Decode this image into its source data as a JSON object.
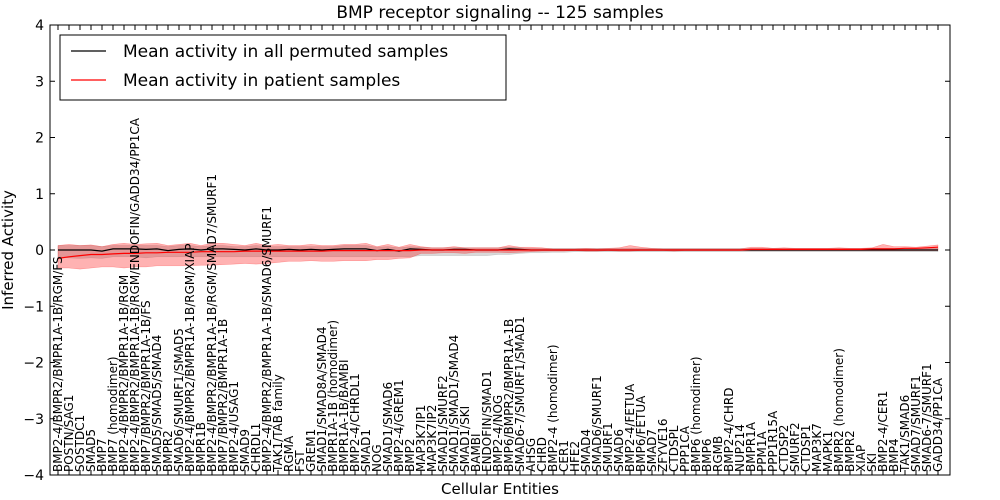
{
  "chart_data": {
    "type": "line",
    "title": "BMP receptor signaling -- 125 samples",
    "xlabel": "Cellular Entities",
    "ylabel": "Inferred Activity",
    "ylim": [
      -4,
      4
    ],
    "yticks": [
      -4,
      -3,
      -2,
      -1,
      0,
      1,
      2,
      3,
      4
    ],
    "ytick_labels": [
      "−4",
      "−3",
      "−2",
      "−1",
      "0",
      "1",
      "2",
      "3",
      "4"
    ],
    "grid": false,
    "legend_position": "top-left",
    "colors": {
      "permuted_line": "#000000",
      "patient_line": "#ff0000",
      "patient_band": "#ff0000",
      "permuted_band": "#808080"
    },
    "categories": [
      "BMP2-4/BMPR2/BMPR1A-1B/RGM/FS",
      "POSTN/SAG1",
      "SOSTDC1",
      "SMAD5",
      "BMP7",
      "BMP7 (homodimer)",
      "BMP2-4/BMPR2/BMPR1A-1B/RGM",
      "BMP2-4/BMPR2/BMPR1A-1B/RGM/ENDOFIN/GADD34/PP1CA",
      "BMP7/BMPR2/BMPR1A-1B/FS",
      "SMAD5/SMAD5/SMAD4",
      "BMPR2",
      "SMAD6/SMURF1/SMAD5",
      "BMP2-4/BMPR2/BMPR1A-1B/RGM/XIAP",
      "BMPR1B",
      "BMP2-4/BMPR2/BMPR1A-1B/RGM/SMAD7/SMURF1",
      "BMP7/BMPR2/BMPR1A-1B",
      "BMP2-4/USAG1",
      "SMAD9",
      "CHRDL1",
      "BMP2-4/BMPR2/BMPR1A-1B/SMAD6/SMURF1",
      "TAK1/TAB family",
      "RGMA",
      "FST",
      "GREM1",
      "SMAD1/SMAD8A/SMAD4",
      "BMPR1A-1B (homodimer)",
      "BMPR1A-1B/BAMBI",
      "BMP2-4/CHRDL1",
      "SMAD1",
      "NOG",
      "SMAD1/SMAD6",
      "BMP2-4/GREM1",
      "BMP2",
      "MAP3K7IP1",
      "MAP3K7IP2",
      "SMAD1/SMURF2",
      "SMAD1/SMAD1/SMAD4",
      "SMAD1/SKI",
      "BAMBI",
      "ENDOFIN/SMAD1",
      "BMP2-4/NOG",
      "BMP6/BMPR2/BMPR1A-1B",
      "SMAD6-7/SMURF1/SMAD1",
      "AHSG",
      "CHRD",
      "BMP2-4 (homodimer)",
      "CER1",
      "HFE2",
      "SMAD4",
      "SMAD6/SMURF1",
      "SMURF1",
      "SMAD6",
      "BMP2-4/FETUA",
      "BMP6/FETUA",
      "SMAD7",
      "ZFYVE16",
      "CTDSPL",
      "PPP1CA",
      "BMP6 (homodimer)",
      "BMP6",
      "RGMB",
      "BMP2-4/CHRD",
      "NUP214",
      "BMPR1A",
      "PPM1A",
      "PPP1R15A",
      "CTDSP2",
      "SMURF2",
      "CTDSP1",
      "MAP3K7",
      "MAPK1",
      "BMPR2 (homodimer)",
      "BMPR2",
      "XIAP",
      "SKI",
      "BMP2-4/CER1",
      "BMP4",
      "TAK1/SMAD6",
      "SMAD7/SMURF1",
      "SMAD6-7/SMURF1",
      "GADD34/PP1CA"
    ],
    "series": [
      {
        "name": "Mean activity in all permuted samples",
        "color": "#000000",
        "values": [
          0.0,
          0.0,
          0.0,
          0.0,
          -0.02,
          0.02,
          0.02,
          0.02,
          0.01,
          0.02,
          -0.01,
          0.01,
          0.02,
          0.0,
          0.02,
          0.02,
          0.01,
          0.0,
          0.02,
          0.0,
          0.0,
          0.01,
          0.0,
          0.01,
          0.0,
          0.01,
          0.02,
          0.02,
          0.02,
          -0.01,
          0.01,
          -0.02,
          0.02,
          0.01,
          0.0,
          0.0,
          0.01,
          0.01,
          0.0,
          0.0,
          0.0,
          0.02,
          0.01,
          0.0,
          0.0,
          0.0,
          0.0,
          0.0,
          0.0,
          0.0,
          0.0,
          0.0,
          0.0,
          0.0,
          0.0,
          0.0,
          0.0,
          0.0,
          0.0,
          0.0,
          0.0,
          0.0,
          0.0,
          0.0,
          0.0,
          0.0,
          0.0,
          0.0,
          0.0,
          0.0,
          0.0,
          0.0,
          0.0,
          0.0,
          0.0,
          0.0,
          0.0,
          0.0,
          0.0,
          0.0,
          0.0
        ],
        "band_lower": [
          -0.12,
          -0.14,
          -0.15,
          -0.14,
          -0.15,
          -0.12,
          -0.12,
          -0.12,
          -0.14,
          -0.12,
          -0.12,
          -0.12,
          -0.12,
          -0.12,
          -0.12,
          -0.12,
          -0.12,
          -0.12,
          -0.12,
          -0.12,
          -0.12,
          -0.12,
          -0.12,
          -0.12,
          -0.12,
          -0.12,
          -0.12,
          -0.12,
          -0.12,
          -0.12,
          -0.12,
          -0.12,
          -0.12,
          -0.1,
          -0.1,
          -0.1,
          -0.1,
          -0.1,
          -0.1,
          -0.1,
          -0.08,
          -0.08,
          -0.06,
          -0.05,
          -0.05,
          -0.04,
          -0.04,
          -0.03,
          -0.03,
          -0.03,
          -0.03,
          -0.03,
          -0.03,
          -0.03,
          -0.03,
          -0.03,
          -0.03,
          -0.03,
          -0.03,
          -0.03,
          -0.03,
          -0.03,
          -0.03,
          -0.03,
          -0.03,
          -0.03,
          -0.03,
          -0.03,
          -0.03,
          -0.03,
          -0.03,
          -0.03,
          -0.03,
          -0.03,
          -0.03,
          -0.03,
          -0.03,
          -0.03,
          -0.03,
          -0.03,
          -0.03
        ],
        "band_upper": [
          0.08,
          0.08,
          0.08,
          0.08,
          0.06,
          0.08,
          0.08,
          0.08,
          0.08,
          0.08,
          0.06,
          0.08,
          0.08,
          0.06,
          0.08,
          0.08,
          0.06,
          0.06,
          0.08,
          0.06,
          0.06,
          0.06,
          0.06,
          0.06,
          0.06,
          0.06,
          0.08,
          0.08,
          0.08,
          0.05,
          0.06,
          0.04,
          0.06,
          0.05,
          0.04,
          0.04,
          0.04,
          0.04,
          0.04,
          0.04,
          0.04,
          0.05,
          0.04,
          0.03,
          0.03,
          0.03,
          0.03,
          0.03,
          0.03,
          0.03,
          0.03,
          0.03,
          0.03,
          0.03,
          0.03,
          0.03,
          0.03,
          0.03,
          0.03,
          0.03,
          0.03,
          0.03,
          0.03,
          0.03,
          0.03,
          0.03,
          0.03,
          0.03,
          0.03,
          0.03,
          0.03,
          0.03,
          0.03,
          0.03,
          0.03,
          0.03,
          0.03,
          0.03,
          0.03,
          0.03,
          0.03
        ]
      },
      {
        "name": "Mean activity in patient samples",
        "color": "#ff0000",
        "values": [
          -0.15,
          -0.12,
          -0.1,
          -0.08,
          -0.08,
          -0.07,
          -0.06,
          -0.06,
          -0.05,
          -0.05,
          -0.04,
          -0.04,
          -0.04,
          -0.03,
          -0.03,
          -0.03,
          -0.03,
          -0.02,
          -0.02,
          -0.02,
          -0.02,
          -0.02,
          -0.02,
          -0.02,
          -0.02,
          -0.01,
          -0.01,
          -0.01,
          -0.01,
          -0.01,
          -0.01,
          -0.01,
          -0.01,
          0.0,
          0.0,
          0.0,
          0.0,
          0.0,
          0.0,
          0.0,
          0.0,
          0.0,
          0.0,
          0.0,
          0.0,
          0.0,
          0.0,
          0.0,
          0.0,
          0.0,
          0.0,
          0.0,
          0.0,
          0.0,
          0.0,
          0.0,
          0.0,
          0.0,
          0.0,
          0.0,
          0.0,
          0.0,
          0.0,
          0.01,
          0.01,
          0.01,
          0.01,
          0.01,
          0.01,
          0.01,
          0.01,
          0.01,
          0.01,
          0.01,
          0.02,
          0.02,
          0.02,
          0.03,
          0.03,
          0.04,
          0.05
        ],
        "band_lower": [
          -0.32,
          -0.32,
          -0.34,
          -0.32,
          -0.3,
          -0.3,
          -0.32,
          -0.3,
          -0.3,
          -0.28,
          -0.28,
          -0.28,
          -0.28,
          -0.27,
          -0.27,
          -0.26,
          -0.25,
          -0.24,
          -0.25,
          -0.24,
          -0.22,
          -0.2,
          -0.2,
          -0.19,
          -0.2,
          -0.2,
          -0.19,
          -0.19,
          -0.19,
          -0.17,
          -0.17,
          -0.15,
          -0.14,
          -0.06,
          -0.06,
          -0.05,
          -0.05,
          -0.06,
          -0.04,
          -0.04,
          -0.04,
          -0.05,
          -0.04,
          -0.03,
          -0.02,
          -0.02,
          -0.02,
          -0.01,
          -0.02,
          -0.02,
          -0.01,
          -0.02,
          -0.02,
          -0.01,
          -0.01,
          -0.01,
          -0.02,
          -0.01,
          -0.01,
          -0.01,
          -0.01,
          -0.01,
          -0.01,
          -0.01,
          -0.01,
          -0.01,
          -0.01,
          -0.01,
          -0.01,
          -0.01,
          -0.01,
          -0.01,
          -0.01,
          -0.01,
          -0.01,
          -0.01,
          -0.01,
          -0.01,
          -0.01,
          -0.01,
          -0.01
        ],
        "band_upper": [
          0.08,
          0.1,
          0.08,
          0.09,
          0.06,
          0.1,
          0.12,
          0.1,
          0.11,
          0.12,
          0.08,
          0.1,
          0.12,
          0.08,
          0.12,
          0.12,
          0.1,
          0.08,
          0.12,
          0.08,
          0.1,
          0.08,
          0.08,
          0.1,
          0.08,
          0.08,
          0.1,
          0.1,
          0.12,
          0.06,
          0.1,
          0.05,
          0.1,
          0.06,
          0.04,
          0.04,
          0.06,
          0.04,
          0.04,
          0.04,
          0.04,
          0.08,
          0.05,
          0.05,
          0.04,
          0.02,
          0.02,
          0.02,
          0.03,
          0.02,
          0.03,
          0.04,
          0.08,
          0.05,
          0.03,
          0.02,
          0.02,
          0.02,
          0.02,
          0.02,
          0.02,
          0.02,
          0.02,
          0.05,
          0.05,
          0.03,
          0.04,
          0.03,
          0.03,
          0.03,
          0.03,
          0.04,
          0.03,
          0.03,
          0.04,
          0.1,
          0.06,
          0.06,
          0.05,
          0.07,
          0.09
        ]
      }
    ]
  }
}
